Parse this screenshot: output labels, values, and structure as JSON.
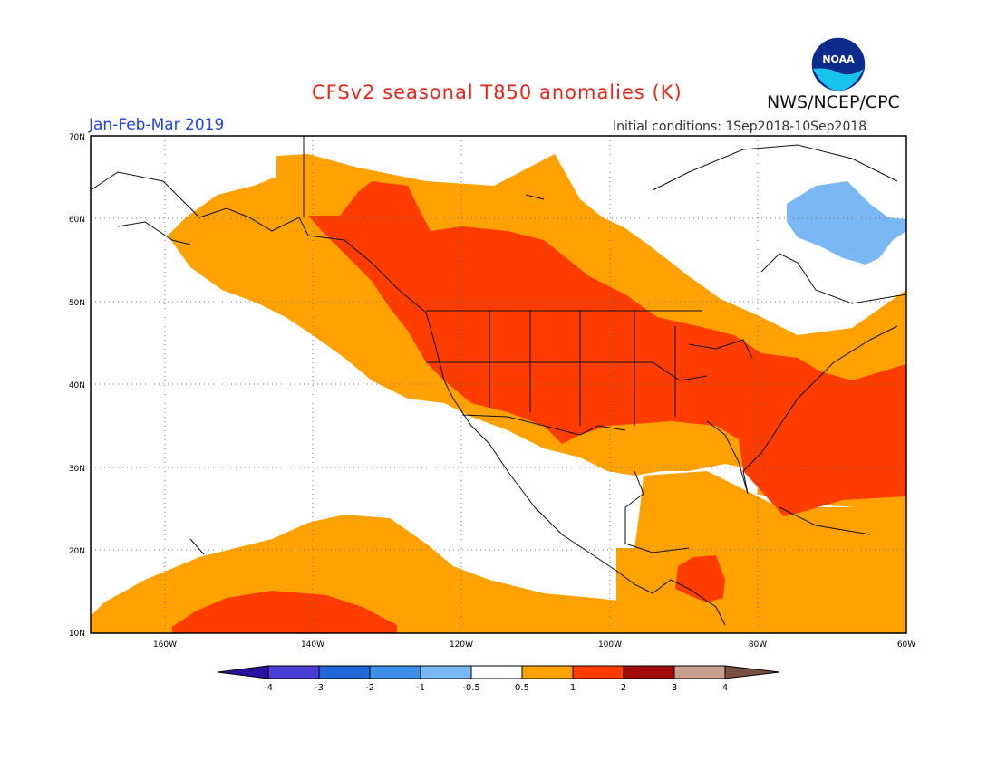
{
  "header": {
    "title": "CFSv2 seasonal T850 anomalies (K)",
    "agency": "NWS/NCEP/CPC",
    "period": "Jan-Feb-Mar 2019",
    "initial_conditions": "Initial conditions: 1Sep2018-10Sep2018",
    "logo_text": "NOAA"
  },
  "map": {
    "lat_labels": [
      "70N",
      "60N",
      "50N",
      "40N",
      "30N",
      "20N",
      "10N"
    ],
    "lon_labels": [
      "160W",
      "140W",
      "120W",
      "100W",
      "80W",
      "60W"
    ],
    "lat_range": [
      10,
      70
    ],
    "lon_range": [
      -170,
      -60
    ]
  },
  "colorbar": {
    "labels": [
      "-4",
      "-3",
      "-2",
      "-1",
      "-0.5",
      "0.5",
      "1",
      "2",
      "3",
      "4"
    ],
    "colors": [
      "#2a12a0",
      "#4a3ed6",
      "#1f67d6",
      "#3d8fe8",
      "#7ab8f5",
      "#ffffff",
      "#ffa200",
      "#ff3c00",
      "#a00a0a",
      "#c8a090",
      "#7a4e40"
    ]
  },
  "anomaly_colors": {
    "plus_0_5_to_1": "#ffa200",
    "plus_1_to_2": "#ff3c00",
    "minus_0_5_to_1": "#7ab8f5"
  }
}
